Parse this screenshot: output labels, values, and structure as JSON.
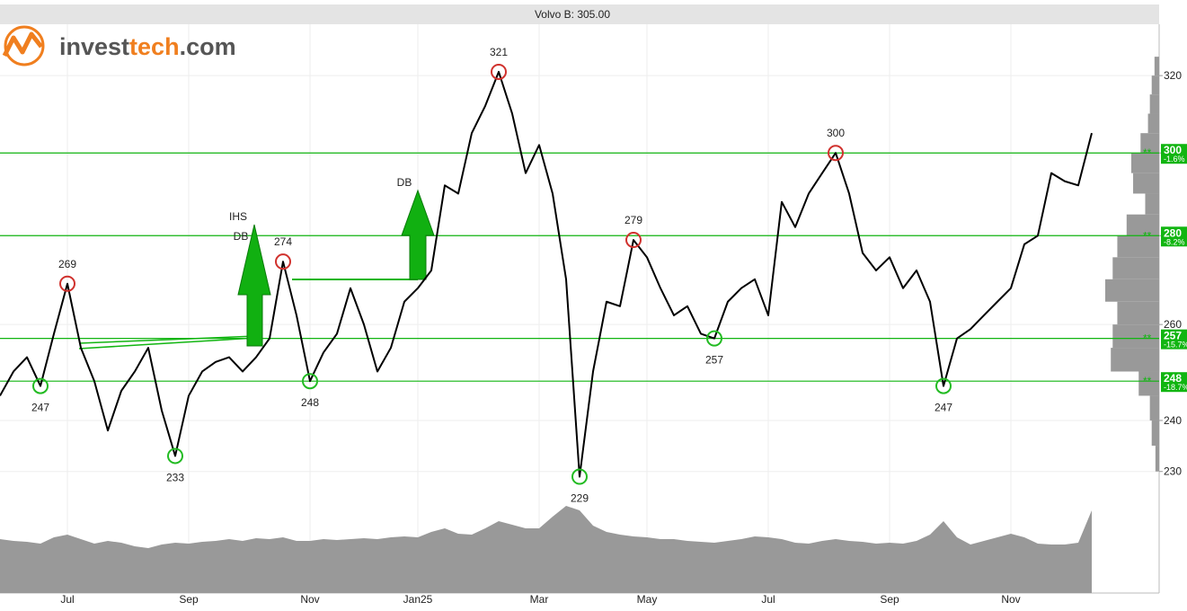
{
  "chart_data": {
    "type": "line",
    "title": "Volvo B: 305.00",
    "logo": [
      "invest",
      "tech",
      ".com"
    ],
    "categories": [
      null,
      null,
      null,
      null,
      null,
      "Jul",
      null,
      null,
      null,
      null,
      null,
      null,
      null,
      null,
      "Sep",
      null,
      null,
      null,
      null,
      null,
      null,
      null,
      null,
      "Nov",
      null,
      null,
      null,
      null,
      null,
      null,
      null,
      "Jan25",
      null,
      null,
      null,
      null,
      null,
      null,
      null,
      null,
      "Mar",
      null,
      null,
      null,
      null,
      null,
      null,
      null,
      "May",
      null,
      null,
      null,
      null,
      null,
      null,
      null,
      null,
      "Jul",
      null,
      null,
      null,
      null,
      null,
      null,
      null,
      null,
      "Sep",
      null,
      null,
      null,
      null,
      null,
      null,
      null,
      null,
      "Nov",
      null,
      null,
      null,
      null,
      null,
      null
    ],
    "series": [
      {
        "color": "#000000",
        "values": [
          245,
          250,
          253,
          247,
          258,
          269,
          255,
          248,
          238,
          246,
          250,
          255,
          242,
          233,
          245,
          250,
          252,
          253,
          250,
          253,
          257,
          274,
          262,
          248,
          254,
          258,
          268,
          260,
          250,
          255,
          265,
          268,
          272,
          292,
          290,
          305,
          312,
          321,
          310,
          295,
          302,
          290,
          270,
          229,
          250,
          265,
          264,
          279,
          275,
          268,
          262,
          264,
          258,
          257,
          265,
          268,
          270,
          262,
          288,
          282,
          290,
          295,
          300,
          290,
          276,
          272,
          275,
          268,
          272,
          265,
          247,
          257,
          259,
          262,
          265,
          268,
          278,
          280,
          295,
          293,
          292,
          305
        ]
      }
    ],
    "ylim": [
      224,
      334
    ],
    "yticks": [
      230,
      240,
      260,
      280,
      300,
      320
    ],
    "log_scale": true,
    "grid": true,
    "volume": {
      "color": "#999999",
      "ylim": [
        0,
        100
      ],
      "values": [
        60,
        58,
        57,
        55,
        62,
        65,
        60,
        55,
        58,
        56,
        52,
        50,
        54,
        56,
        55,
        57,
        58,
        60,
        58,
        61,
        60,
        62,
        58,
        58,
        60,
        59,
        60,
        61,
        60,
        62,
        63,
        62,
        68,
        72,
        66,
        65,
        72,
        80,
        76,
        72,
        72,
        85,
        97,
        92,
        75,
        68,
        65,
        63,
        62,
        60,
        60,
        58,
        57,
        56,
        58,
        60,
        63,
        62,
        60,
        56,
        55,
        58,
        60,
        58,
        57,
        55,
        56,
        55,
        58,
        65,
        80,
        62,
        54,
        58,
        62,
        66,
        62,
        55,
        54,
        54,
        56,
        92
      ]
    },
    "volume_profile": {
      "color": "#999999",
      "levels": [
        230,
        235,
        240,
        245,
        250,
        255,
        260,
        265,
        270,
        275,
        280,
        285,
        290,
        295,
        300,
        305,
        310,
        315,
        320
      ],
      "values": [
        4,
        8,
        10,
        22,
        52,
        50,
        45,
        58,
        50,
        45,
        35,
        15,
        28,
        30,
        20,
        12,
        10,
        8,
        5
      ]
    },
    "levels": [
      {
        "value": 300,
        "change": "-1.6%"
      },
      {
        "value": 280,
        "change": "-8.2%"
      },
      {
        "value": 257,
        "change": "-15.7%"
      },
      {
        "value": 248,
        "change": "-18.7%"
      }
    ],
    "level_marker": "**",
    "level_color": "#11b511",
    "extremes": [
      {
        "index": 5,
        "value": 269,
        "kind": "high"
      },
      {
        "index": 3,
        "value": 247,
        "kind": "low"
      },
      {
        "index": 13,
        "value": 233,
        "kind": "low"
      },
      {
        "index": 21,
        "value": 274,
        "kind": "high"
      },
      {
        "index": 23,
        "value": 248,
        "kind": "low"
      },
      {
        "index": 37,
        "value": 321,
        "kind": "high"
      },
      {
        "index": 43,
        "value": 229,
        "kind": "low"
      },
      {
        "index": 47,
        "value": 279,
        "kind": "high"
      },
      {
        "index": 53,
        "value": 257,
        "kind": "low"
      },
      {
        "index": 62,
        "value": 300,
        "kind": "high"
      },
      {
        "index": 70,
        "value": 247,
        "kind": "low"
      }
    ],
    "pattern_labels": [
      "IHS",
      "DB",
      "DB"
    ]
  }
}
